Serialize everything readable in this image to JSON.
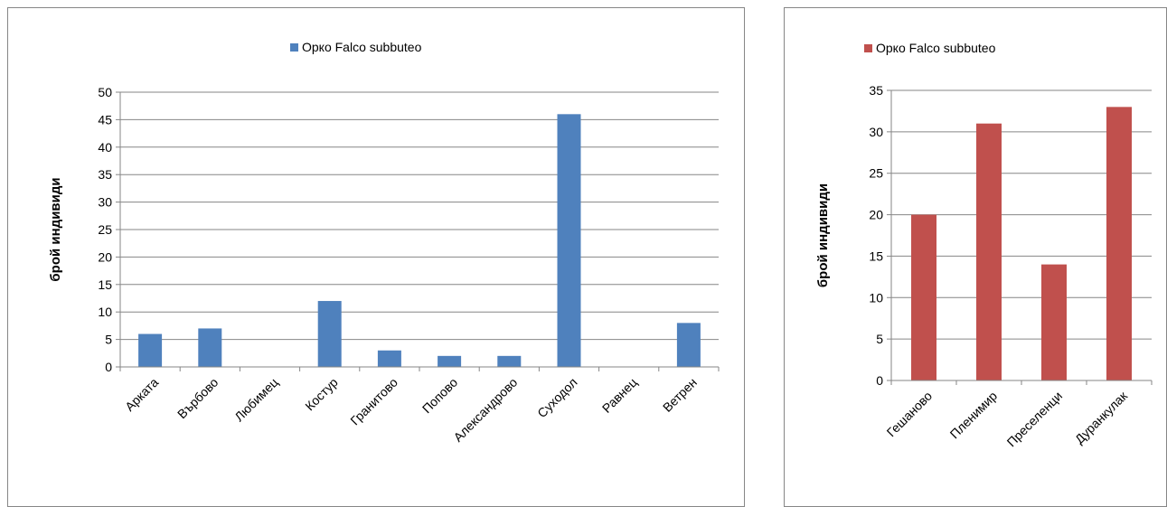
{
  "chart_data": [
    {
      "type": "bar",
      "categories": [
        "Арката",
        "Върбово",
        "Любимец",
        "Костур",
        "Гранитово",
        "Попово",
        "Александрово",
        "Суходол",
        "Равнец",
        "Ветрен"
      ],
      "series": [
        {
          "name": "Орко Falco subbuteo",
          "values": [
            6,
            7,
            0,
            12,
            3,
            2,
            2,
            46,
            0,
            8
          ],
          "color": "#4F81BD"
        }
      ],
      "ylabel": "брой индивиди",
      "ylim": [
        0,
        50
      ],
      "yticks": [
        0,
        5,
        10,
        15,
        20,
        25,
        30,
        35,
        40,
        45,
        50
      ],
      "grid": true,
      "legend": "top"
    },
    {
      "type": "bar",
      "categories": [
        "Гешаново",
        "Пленимир",
        "Преселенци",
        "Дуранкулак"
      ],
      "series": [
        {
          "name": "Орко Falco subbuteo",
          "values": [
            20,
            31,
            14,
            33
          ],
          "color": "#C0504D"
        }
      ],
      "ylabel": "брой индивиди",
      "ylim": [
        0,
        35
      ],
      "yticks": [
        0,
        5,
        10,
        15,
        20,
        25,
        30,
        35
      ],
      "grid": true,
      "legend": "top"
    }
  ]
}
